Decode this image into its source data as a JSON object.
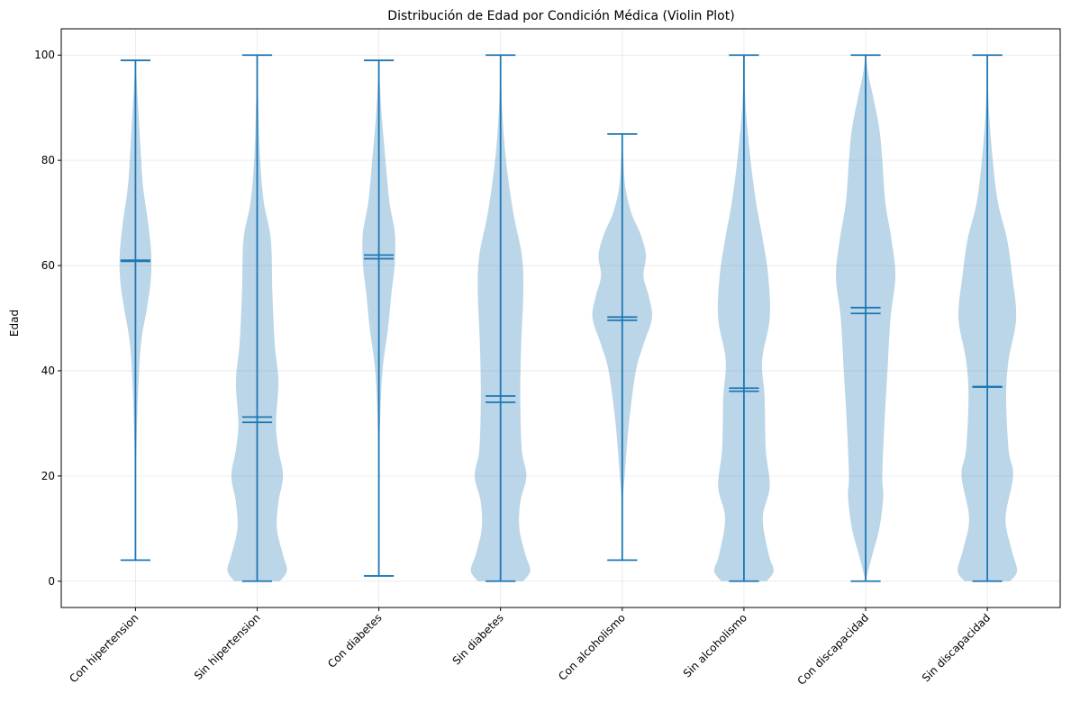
{
  "chart_data": {
    "type": "violin",
    "title": "Distribución de Edad por Condición Médica (Violin Plot)",
    "xlabel": "",
    "ylabel": "Edad",
    "ylim": [
      -5,
      105
    ],
    "yticks": [
      0,
      20,
      40,
      60,
      80,
      100
    ],
    "grid": true,
    "categories": [
      "Con hipertension",
      "Sin hipertension",
      "Con diabetes",
      "Sin diabetes",
      "Con alcoholismo",
      "Sin alcoholismo",
      "Con discapacidad",
      "Sin discapacidad"
    ],
    "series": [
      {
        "name": "Con hipertension",
        "min": 4,
        "max": 99,
        "mean": 61,
        "median": 60.8,
        "density": [
          [
            4,
            0.0
          ],
          [
            20,
            0.01
          ],
          [
            25,
            0.03
          ],
          [
            35,
            0.08
          ],
          [
            45,
            0.18
          ],
          [
            52,
            0.38
          ],
          [
            57,
            0.5
          ],
          [
            62,
            0.52
          ],
          [
            68,
            0.42
          ],
          [
            75,
            0.25
          ],
          [
            82,
            0.17
          ],
          [
            90,
            0.09
          ],
          [
            95,
            0.04
          ],
          [
            99,
            0.0
          ]
        ]
      },
      {
        "name": "Sin hipertension",
        "min": 0,
        "max": 100,
        "mean": 31.2,
        "median": 30.2,
        "density": [
          [
            0,
            0.75
          ],
          [
            2,
            0.98
          ],
          [
            5,
            0.85
          ],
          [
            10,
            0.65
          ],
          [
            15,
            0.7
          ],
          [
            20,
            0.85
          ],
          [
            25,
            0.7
          ],
          [
            30,
            0.62
          ],
          [
            38,
            0.7
          ],
          [
            45,
            0.58
          ],
          [
            55,
            0.5
          ],
          [
            65,
            0.45
          ],
          [
            72,
            0.22
          ],
          [
            80,
            0.1
          ],
          [
            90,
            0.04
          ],
          [
            100,
            0.0
          ]
        ]
      },
      {
        "name": "Con diabetes",
        "min": 1,
        "max": 99,
        "mean": 62,
        "median": 61.3,
        "density": [
          [
            1,
            0.0
          ],
          [
            20,
            0.01
          ],
          [
            30,
            0.04
          ],
          [
            40,
            0.12
          ],
          [
            48,
            0.3
          ],
          [
            55,
            0.42
          ],
          [
            60,
            0.52
          ],
          [
            66,
            0.53
          ],
          [
            72,
            0.35
          ],
          [
            80,
            0.22
          ],
          [
            88,
            0.1
          ],
          [
            95,
            0.03
          ],
          [
            99,
            0.0
          ]
        ]
      },
      {
        "name": "Sin diabetes",
        "min": 0,
        "max": 100,
        "mean": 35.2,
        "median": 34,
        "density": [
          [
            0,
            0.75
          ],
          [
            2,
            0.98
          ],
          [
            5,
            0.82
          ],
          [
            10,
            0.62
          ],
          [
            15,
            0.65
          ],
          [
            20,
            0.85
          ],
          [
            25,
            0.7
          ],
          [
            35,
            0.65
          ],
          [
            45,
            0.68
          ],
          [
            55,
            0.75
          ],
          [
            62,
            0.7
          ],
          [
            70,
            0.42
          ],
          [
            80,
            0.18
          ],
          [
            90,
            0.05
          ],
          [
            100,
            0.0
          ]
        ]
      },
      {
        "name": "Con alcoholismo",
        "min": 4,
        "max": 85,
        "mean": 50.2,
        "median": 49.6,
        "density": [
          [
            4,
            0.0
          ],
          [
            15,
            0.02
          ],
          [
            20,
            0.08
          ],
          [
            30,
            0.22
          ],
          [
            40,
            0.45
          ],
          [
            45,
            0.7
          ],
          [
            50,
            0.98
          ],
          [
            54,
            0.88
          ],
          [
            58,
            0.7
          ],
          [
            62,
            0.78
          ],
          [
            66,
            0.6
          ],
          [
            70,
            0.3
          ],
          [
            75,
            0.1
          ],
          [
            80,
            0.04
          ],
          [
            85,
            0.0
          ]
        ]
      },
      {
        "name": "Sin alcoholismo",
        "min": 0,
        "max": 100,
        "mean": 36.7,
        "median": 36.1,
        "density": [
          [
            0,
            0.75
          ],
          [
            2,
            0.98
          ],
          [
            5,
            0.82
          ],
          [
            12,
            0.62
          ],
          [
            18,
            0.85
          ],
          [
            25,
            0.72
          ],
          [
            35,
            0.68
          ],
          [
            42,
            0.6
          ],
          [
            50,
            0.85
          ],
          [
            58,
            0.8
          ],
          [
            65,
            0.62
          ],
          [
            72,
            0.4
          ],
          [
            80,
            0.22
          ],
          [
            90,
            0.06
          ],
          [
            100,
            0.0
          ]
        ]
      },
      {
        "name": "Con discapacidad",
        "min": 0,
        "max": 100,
        "mean": 52,
        "median": 50.9,
        "density": [
          [
            0,
            0.0
          ],
          [
            5,
            0.22
          ],
          [
            10,
            0.45
          ],
          [
            16,
            0.58
          ],
          [
            20,
            0.55
          ],
          [
            30,
            0.62
          ],
          [
            40,
            0.72
          ],
          [
            50,
            0.82
          ],
          [
            58,
            0.98
          ],
          [
            65,
            0.85
          ],
          [
            72,
            0.65
          ],
          [
            80,
            0.55
          ],
          [
            86,
            0.45
          ],
          [
            92,
            0.25
          ],
          [
            96,
            0.1
          ],
          [
            100,
            0.0
          ]
        ]
      },
      {
        "name": "Sin discapacidad",
        "min": 0,
        "max": 100,
        "mean": 37,
        "median": 36.9,
        "density": [
          [
            0,
            0.75
          ],
          [
            2,
            0.98
          ],
          [
            6,
            0.8
          ],
          [
            12,
            0.6
          ],
          [
            20,
            0.85
          ],
          [
            25,
            0.7
          ],
          [
            35,
            0.62
          ],
          [
            42,
            0.7
          ],
          [
            50,
            0.95
          ],
          [
            58,
            0.82
          ],
          [
            65,
            0.65
          ],
          [
            72,
            0.35
          ],
          [
            80,
            0.18
          ],
          [
            90,
            0.05
          ],
          [
            100,
            0.0
          ]
        ]
      }
    ]
  }
}
